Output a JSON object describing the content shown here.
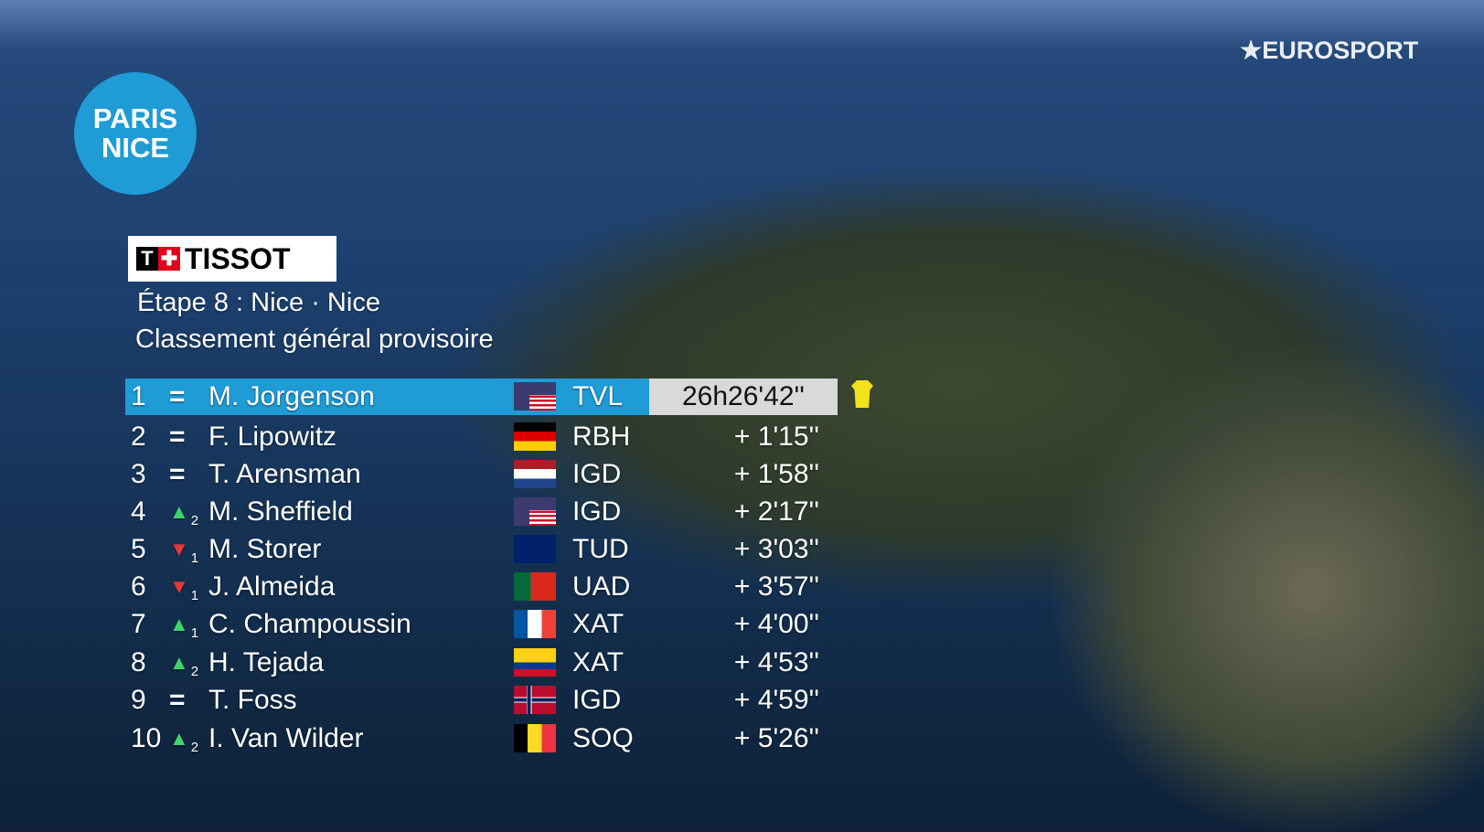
{
  "logos": {
    "race": [
      "PARIS",
      "NICE"
    ],
    "broadcaster": "EUROSPORT",
    "sponsor": "TISSOT"
  },
  "header": {
    "stage": "Étape 8 : Nice ·  Nice",
    "classification": "Classement général provisoire"
  },
  "colors": {
    "leader_bar": "#1f9bd6",
    "up": "#3fd46a",
    "down": "#e53935",
    "jersey": "#f2e21b"
  },
  "rows": [
    {
      "rank": "1",
      "move": "=",
      "change": "",
      "name": "M. Jorgenson",
      "flag": "USA",
      "team": "TVL",
      "time": "26h26'42''"
    },
    {
      "rank": "2",
      "move": "=",
      "change": "",
      "name": "F. Lipowitz",
      "flag": "Germany",
      "team": "RBH",
      "time": "+ 1'15''"
    },
    {
      "rank": "3",
      "move": "=",
      "change": "",
      "name": "T. Arensman",
      "flag": "Netherlands",
      "team": "IGD",
      "time": "+ 1'58''"
    },
    {
      "rank": "4",
      "move": "up",
      "change": "2",
      "name": "M. Sheffield",
      "flag": "USA",
      "team": "IGD",
      "time": "+ 2'17''"
    },
    {
      "rank": "5",
      "move": "down",
      "change": "1",
      "name": "M. Storer",
      "flag": "Australia",
      "team": "TUD",
      "time": "+ 3'03''"
    },
    {
      "rank": "6",
      "move": "down",
      "change": "1",
      "name": "J. Almeida",
      "flag": "Portugal",
      "team": "UAD",
      "time": "+ 3'57''"
    },
    {
      "rank": "7",
      "move": "up",
      "change": "1",
      "name": "C. Champoussin",
      "flag": "France",
      "team": "XAT",
      "time": "+ 4'00''"
    },
    {
      "rank": "8",
      "move": "up",
      "change": "2",
      "name": "H. Tejada",
      "flag": "Colombia",
      "team": "XAT",
      "time": "+ 4'53''"
    },
    {
      "rank": "9",
      "move": "=",
      "change": "",
      "name": "T. Foss",
      "flag": "Norway",
      "team": "IGD",
      "time": "+ 4'59''"
    },
    {
      "rank": "10",
      "move": "up",
      "change": "2",
      "name": "I. Van Wilder",
      "flag": "Belgium",
      "team": "SOQ",
      "time": "+ 5'26''"
    }
  ]
}
